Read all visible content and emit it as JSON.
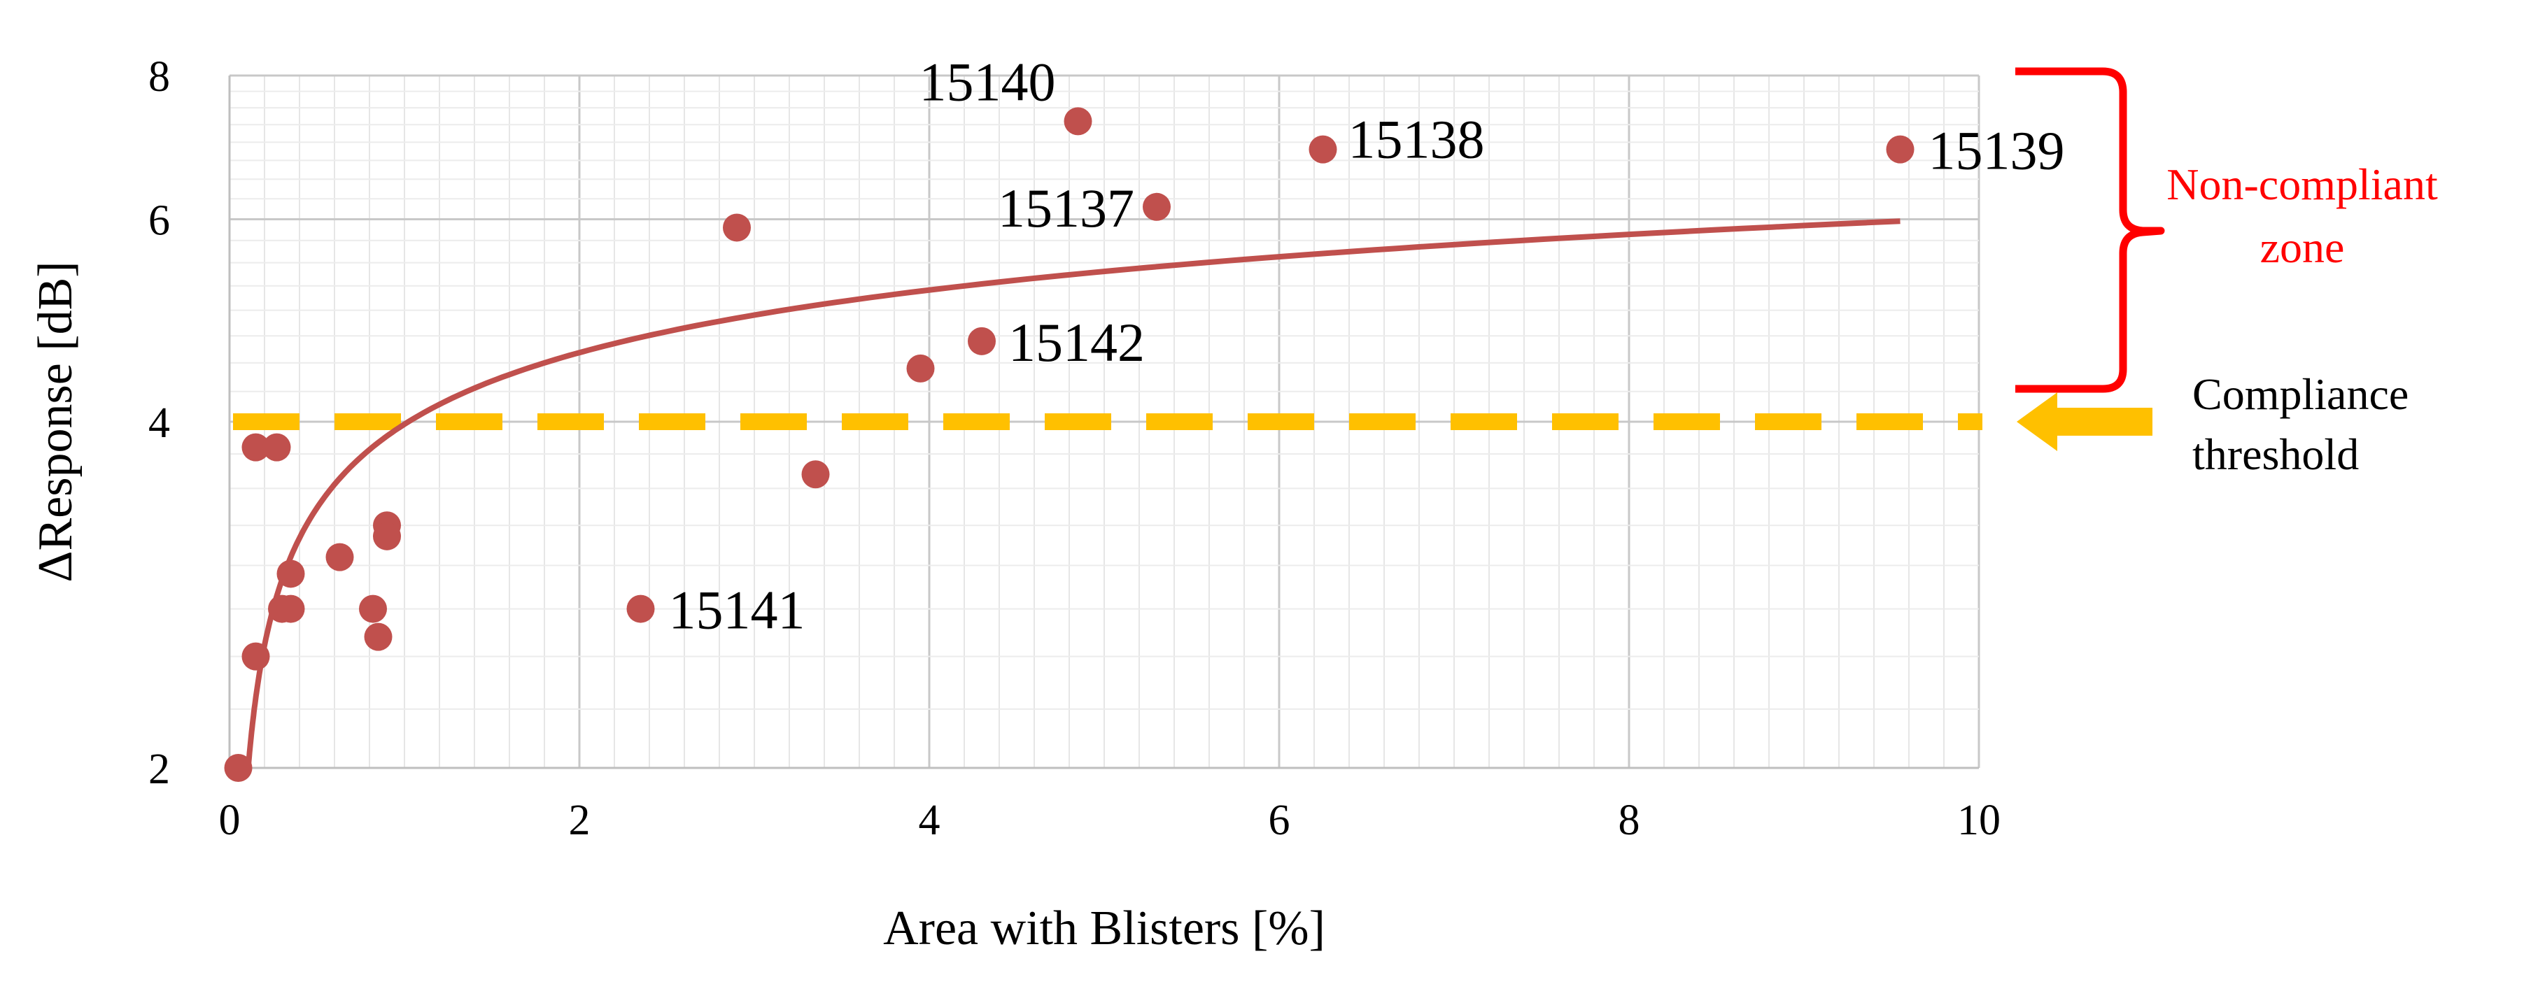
{
  "colors": {
    "marker": "#c0504d",
    "trend": "#c0504d",
    "threshold": "#ffc000",
    "noncompliant": "#ff0000",
    "grid": "#d9d9d9"
  },
  "chart_data": {
    "type": "scatter",
    "xlabel": "Area with Blisters [%]",
    "ylabel": "ΔResponse [dB]",
    "xlim": [
      0,
      10
    ],
    "ylim": [
      2,
      8
    ],
    "y_scale": "log",
    "x_ticks": [
      0,
      2,
      4,
      6,
      8,
      10
    ],
    "y_ticks": [
      2,
      4,
      6,
      8
    ],
    "grid": true,
    "series": [
      {
        "points": [
          {
            "x": 0.05,
            "y": 2.0,
            "label": ""
          },
          {
            "x": 0.15,
            "y": 2.5,
            "label": ""
          },
          {
            "x": 0.15,
            "y": 3.8,
            "label": ""
          },
          {
            "x": 0.27,
            "y": 3.8,
            "label": ""
          },
          {
            "x": 0.3,
            "y": 2.75,
            "label": ""
          },
          {
            "x": 0.35,
            "y": 2.75,
            "label": ""
          },
          {
            "x": 0.35,
            "y": 2.95,
            "label": ""
          },
          {
            "x": 0.63,
            "y": 3.05,
            "label": ""
          },
          {
            "x": 0.82,
            "y": 2.75,
            "label": ""
          },
          {
            "x": 0.85,
            "y": 2.6,
            "label": ""
          },
          {
            "x": 0.9,
            "y": 3.25,
            "label": ""
          },
          {
            "x": 0.9,
            "y": 3.18,
            "label": ""
          },
          {
            "x": 2.35,
            "y": 2.75,
            "label": "15141"
          },
          {
            "x": 2.9,
            "y": 5.9,
            "label": ""
          },
          {
            "x": 3.35,
            "y": 3.6,
            "label": ""
          },
          {
            "x": 3.95,
            "y": 4.45,
            "label": ""
          },
          {
            "x": 4.3,
            "y": 4.7,
            "label": "15142"
          },
          {
            "x": 4.85,
            "y": 7.3,
            "label": "15140"
          },
          {
            "x": 5.3,
            "y": 6.15,
            "label": "15137"
          },
          {
            "x": 6.25,
            "y": 6.9,
            "label": "15138"
          },
          {
            "x": 9.55,
            "y": 6.9,
            "label": "15139"
          }
        ]
      }
    ],
    "trendline": {
      "type": "logarithmic",
      "a": 3.98,
      "b": 0.885,
      "x_from": 0.08,
      "x_to": 9.55
    },
    "threshold": {
      "y": 4,
      "style": "dashed"
    },
    "annotations": {
      "noncompliant_line1": "Non-compliant",
      "noncompliant_line2": "zone",
      "threshold_line1": "Compliance",
      "threshold_line2": "threshold"
    }
  }
}
